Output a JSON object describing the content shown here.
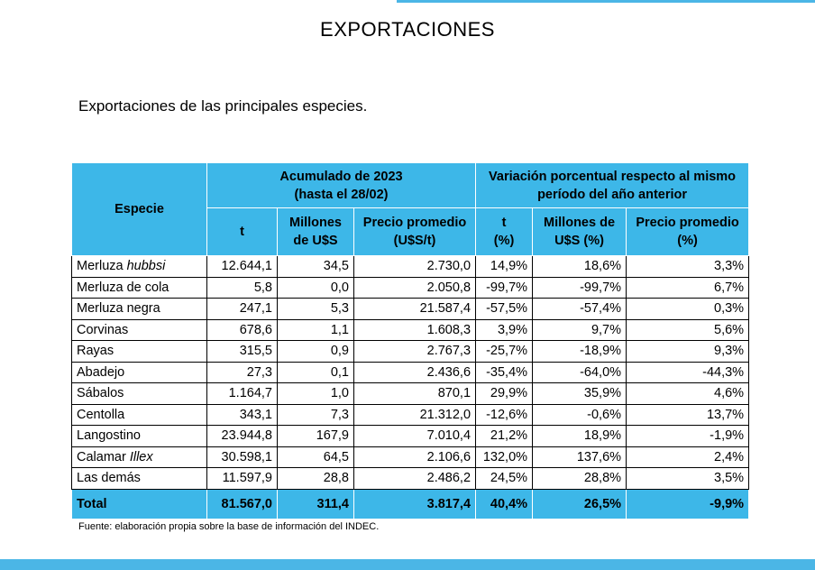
{
  "header": {
    "title": "EXPORTACIONES"
  },
  "subtitle": "Exportaciones de las principales especies.",
  "table": {
    "col_especie": "Especie",
    "group_acumulado": [
      "Acumulado de 2023",
      "(hasta el 28/02)"
    ],
    "group_variacion": [
      "Variación porcentual respecto al mismo",
      "período del año anterior"
    ],
    "sub_t": "t",
    "sub_millones": [
      "Millones",
      "de U$S"
    ],
    "sub_precio": [
      "Precio promedio",
      "(U$S/t)"
    ],
    "sub_var_t": [
      "t",
      "(%)"
    ],
    "sub_var_millones": [
      "Millones de",
      "U$S (%)"
    ],
    "sub_var_precio": [
      "Precio promedio",
      "(%)"
    ],
    "rows": [
      {
        "name": "Merluza ",
        "name_italic": "hubbsi",
        "t": "12.644,1",
        "mus": "34,5",
        "precio": "2.730,0",
        "vt": "14,9%",
        "vmus": "18,6%",
        "vprecio": "3,3%"
      },
      {
        "name": "Merluza de cola",
        "name_italic": "",
        "t": "5,8",
        "mus": "0,0",
        "precio": "2.050,8",
        "vt": "-99,7%",
        "vmus": "-99,7%",
        "vprecio": "6,7%"
      },
      {
        "name": "Merluza negra",
        "name_italic": "",
        "t": "247,1",
        "mus": "5,3",
        "precio": "21.587,4",
        "vt": "-57,5%",
        "vmus": "-57,4%",
        "vprecio": "0,3%"
      },
      {
        "name": "Corvinas",
        "name_italic": "",
        "t": "678,6",
        "mus": "1,1",
        "precio": "1.608,3",
        "vt": "3,9%",
        "vmus": "9,7%",
        "vprecio": "5,6%"
      },
      {
        "name": "Rayas",
        "name_italic": "",
        "t": "315,5",
        "mus": "0,9",
        "precio": "2.767,3",
        "vt": "-25,7%",
        "vmus": "-18,9%",
        "vprecio": "9,3%"
      },
      {
        "name": "Abadejo",
        "name_italic": "",
        "t": "27,3",
        "mus": "0,1",
        "precio": "2.436,6",
        "vt": "-35,4%",
        "vmus": "-64,0%",
        "vprecio": "-44,3%"
      },
      {
        "name": "Sábalos",
        "name_italic": "",
        "t": "1.164,7",
        "mus": "1,0",
        "precio": "870,1",
        "vt": "29,9%",
        "vmus": "35,9%",
        "vprecio": "4,6%"
      },
      {
        "name": "Centolla",
        "name_italic": "",
        "t": "343,1",
        "mus": "7,3",
        "precio": "21.312,0",
        "vt": "-12,6%",
        "vmus": "-0,6%",
        "vprecio": "13,7%"
      },
      {
        "name": "Langostino",
        "name_italic": "",
        "t": "23.944,8",
        "mus": "167,9",
        "precio": "7.010,4",
        "vt": "21,2%",
        "vmus": "18,9%",
        "vprecio": "-1,9%"
      },
      {
        "name": "Calamar ",
        "name_italic": "Illex",
        "t": "30.598,1",
        "mus": "64,5",
        "precio": "2.106,6",
        "vt": "132,0%",
        "vmus": "137,6%",
        "vprecio": "2,4%"
      },
      {
        "name": "Las demás",
        "name_italic": "",
        "t": "11.597,9",
        "mus": "28,8",
        "precio": "2.486,2",
        "vt": "24,5%",
        "vmus": "28,8%",
        "vprecio": "3,5%"
      }
    ],
    "total": {
      "name": "Total",
      "t": "81.567,0",
      "mus": "311,4",
      "precio": "3.817,4",
      "vt": "40,4%",
      "vmus": "26,5%",
      "vprecio": "-9,9%"
    }
  },
  "source": "Fuente: elaboración propia sobre la base de información del INDEC.",
  "colors": {
    "accent": "#3db7e8",
    "bar": "#4bb6e6"
  }
}
